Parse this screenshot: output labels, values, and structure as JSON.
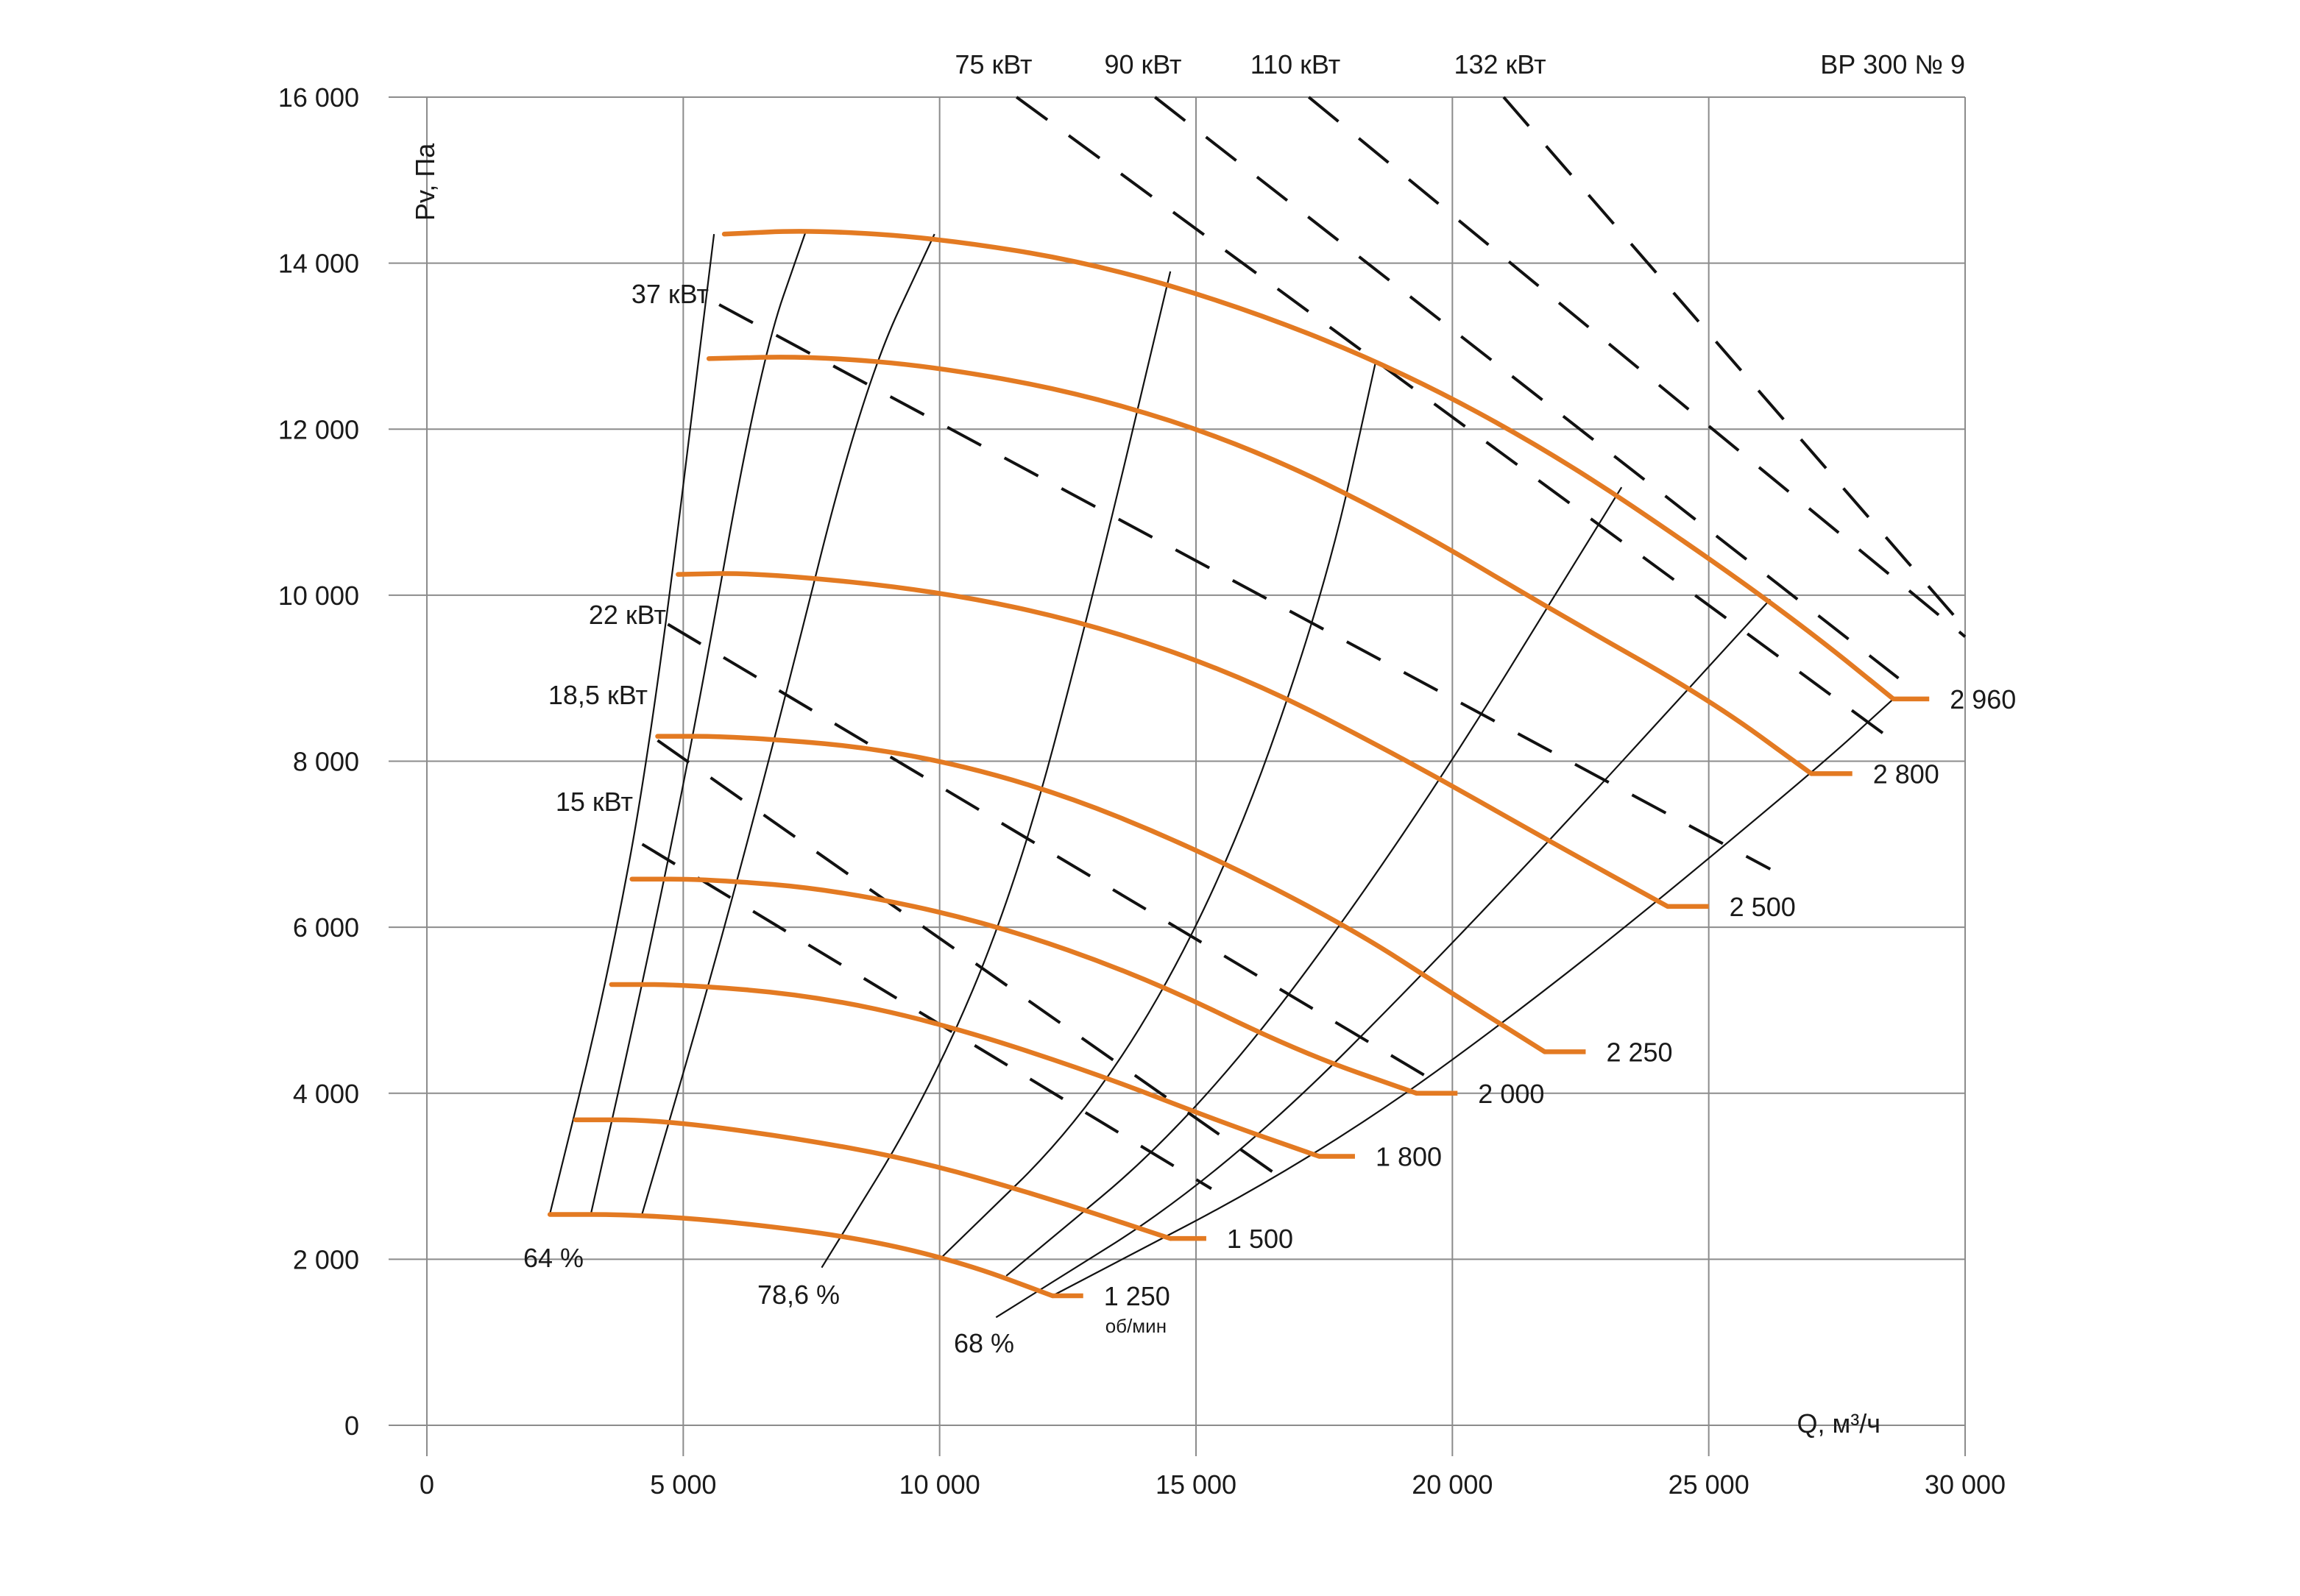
{
  "chart_data": {
    "type": "line",
    "title": "ВР 300 № 9",
    "xlabel": "Q, м³/ч",
    "ylabel": "Pv, Па",
    "xlim": [
      0,
      30000
    ],
    "ylim": [
      0,
      16000
    ],
    "grid": true,
    "x_ticks": [
      {
        "value": 0,
        "label": "0"
      },
      {
        "value": 5000,
        "label": "5 000"
      },
      {
        "value": 10000,
        "label": "10 000"
      },
      {
        "value": 15000,
        "label": "15 000"
      },
      {
        "value": 20000,
        "label": "20 000"
      },
      {
        "value": 25000,
        "label": "25 000"
      },
      {
        "value": 30000,
        "label": "30 000"
      }
    ],
    "y_ticks": [
      {
        "value": 0,
        "label": "0"
      },
      {
        "value": 2000,
        "label": "2 000"
      },
      {
        "value": 4000,
        "label": "4 000"
      },
      {
        "value": 6000,
        "label": "6 000"
      },
      {
        "value": 8000,
        "label": "8 000"
      },
      {
        "value": 10000,
        "label": "10 000"
      },
      {
        "value": 12000,
        "label": "12 000"
      },
      {
        "value": 14000,
        "label": "14 000"
      },
      {
        "value": 16000,
        "label": "16 000"
      }
    ],
    "series": [
      {
        "name": "2 960",
        "color": "#e37a22",
        "points": [
          [
            5800,
            14350
          ],
          [
            7500,
            14400
          ],
          [
            10000,
            14300
          ],
          [
            13000,
            14000
          ],
          [
            16000,
            13450
          ],
          [
            19000,
            12700
          ],
          [
            22000,
            11700
          ],
          [
            25000,
            10450
          ],
          [
            27000,
            9550
          ],
          [
            28600,
            8750
          ]
        ],
        "tail_to": 29300
      },
      {
        "name": "2 800",
        "color": "#e37a22",
        "points": [
          [
            5500,
            12850
          ],
          [
            7500,
            12880
          ],
          [
            10000,
            12750
          ],
          [
            13000,
            12400
          ],
          [
            16000,
            11800
          ],
          [
            19000,
            10900
          ],
          [
            22000,
            9800
          ],
          [
            25000,
            8750
          ],
          [
            27000,
            7850
          ]
        ],
        "tail_to": 27800
      },
      {
        "name": "2 500",
        "color": "#e37a22",
        "points": [
          [
            4900,
            10250
          ],
          [
            6500,
            10270
          ],
          [
            10000,
            10050
          ],
          [
            13000,
            9650
          ],
          [
            16000,
            9000
          ],
          [
            19000,
            8050
          ],
          [
            22000,
            7000
          ],
          [
            24200,
            6250
          ]
        ],
        "tail_to": 25000
      },
      {
        "name": "2 250",
        "color": "#e37a22",
        "points": [
          [
            4500,
            8300
          ],
          [
            6000,
            8300
          ],
          [
            9000,
            8150
          ],
          [
            12000,
            7700
          ],
          [
            15000,
            6950
          ],
          [
            18000,
            6000
          ],
          [
            20000,
            5200
          ],
          [
            21800,
            4500
          ],
          [
            21800,
            5050
          ]
        ],
        "tail_to": 22600
      },
      {
        "name": "2 000",
        "color": "#e37a22",
        "points": [
          [
            4000,
            6580
          ],
          [
            5500,
            6580
          ],
          [
            8000,
            6450
          ],
          [
            11000,
            6050
          ],
          [
            14000,
            5400
          ],
          [
            17000,
            4500
          ],
          [
            19300,
            4000
          ]
        ],
        "tail_to": 20100
      },
      {
        "name": "1 800",
        "color": "#e37a22",
        "points": [
          [
            3600,
            5310
          ],
          [
            5000,
            5310
          ],
          [
            7500,
            5180
          ],
          [
            10000,
            4850
          ],
          [
            13000,
            4250
          ],
          [
            15500,
            3650
          ],
          [
            17400,
            3240
          ]
        ],
        "tail_to": 18100
      },
      {
        "name": "1 500",
        "color": "#e37a22",
        "points": [
          [
            2900,
            3680
          ],
          [
            4500,
            3680
          ],
          [
            7000,
            3480
          ],
          [
            9500,
            3200
          ],
          [
            12000,
            2760
          ],
          [
            14500,
            2250
          ]
        ],
        "tail_to": 15200
      },
      {
        "name": "1 250",
        "color": "#e37a22",
        "points": [
          [
            2400,
            2540
          ],
          [
            4000,
            2540
          ],
          [
            6000,
            2450
          ],
          [
            8500,
            2250
          ],
          [
            10500,
            1950
          ],
          [
            12200,
            1560
          ]
        ],
        "tail_to": 12800
      }
    ],
    "power_lines": [
      {
        "label": "15 кВт",
        "from": [
          4200,
          7000
        ],
        "to": [
          15300,
          2850
        ]
      },
      {
        "label": "18,5 кВт",
        "from": [
          4500,
          8250
        ],
        "to": [
          16500,
          3050
        ]
      },
      {
        "label": "22 кВт",
        "from": [
          4700,
          9650
        ],
        "to": [
          19500,
          4200
        ]
      },
      {
        "label": "37 кВт",
        "from": [
          5700,
          13500
        ],
        "to": [
          26200,
          6700
        ]
      },
      {
        "label": "75 кВт",
        "from": [
          11500,
          16000
        ],
        "to": [
          28700,
          8200
        ]
      },
      {
        "label": "90 кВт",
        "from": [
          14200,
          16000
        ],
        "to": [
          28700,
          9000
        ]
      },
      {
        "label": "110 кВт",
        "from": [
          17200,
          16000
        ],
        "to": [
          30000,
          9500
        ]
      },
      {
        "label": "132 кВт",
        "from": [
          21000,
          16000
        ],
        "to": [
          30000,
          9600
        ]
      }
    ],
    "efficiency_lines": [
      {
        "label": "64 %",
        "points": [
          [
            2400,
            2550
          ],
          [
            3500,
            5300
          ],
          [
            4400,
            8300
          ],
          [
            5600,
            14350
          ]
        ]
      },
      {
        "label": "",
        "points": [
          [
            3200,
            2550
          ],
          [
            4200,
            5300
          ],
          [
            5200,
            8300
          ],
          [
            6500,
            12800
          ],
          [
            7400,
            14400
          ]
        ]
      },
      {
        "label": "",
        "points": [
          [
            4200,
            2550
          ],
          [
            5500,
            5300
          ],
          [
            6800,
            8300
          ],
          [
            8500,
            12500
          ],
          [
            9900,
            14350
          ]
        ]
      },
      {
        "label": "78,6 %",
        "points": [
          [
            7700,
            1900
          ],
          [
            9800,
            4000
          ],
          [
            11500,
            6500
          ],
          [
            13000,
            10000
          ],
          [
            14500,
            13900
          ]
        ]
      },
      {
        "label": "",
        "points": [
          [
            10000,
            2000
          ],
          [
            13000,
            3800
          ],
          [
            15500,
            6500
          ],
          [
            17500,
            10000
          ],
          [
            18500,
            12800
          ]
        ]
      },
      {
        "label": "",
        "points": [
          [
            11300,
            1800
          ],
          [
            15000,
            3700
          ],
          [
            19000,
            7000
          ],
          [
            23300,
            11300
          ]
        ]
      },
      {
        "label": "68 %",
        "points": [
          [
            11100,
            1300
          ],
          [
            15500,
            3000
          ],
          [
            20500,
            6100
          ],
          [
            26200,
            9950
          ]
        ]
      },
      {
        "label": "",
        "points": [
          [
            12200,
            1560
          ],
          [
            17400,
            3240
          ],
          [
            22000,
            5300
          ],
          [
            27000,
            7850
          ],
          [
            28600,
            8750
          ]
        ]
      }
    ],
    "labels": {
      "unit_rpm": "об/мин",
      "model": "ВР 300 № 9"
    }
  }
}
